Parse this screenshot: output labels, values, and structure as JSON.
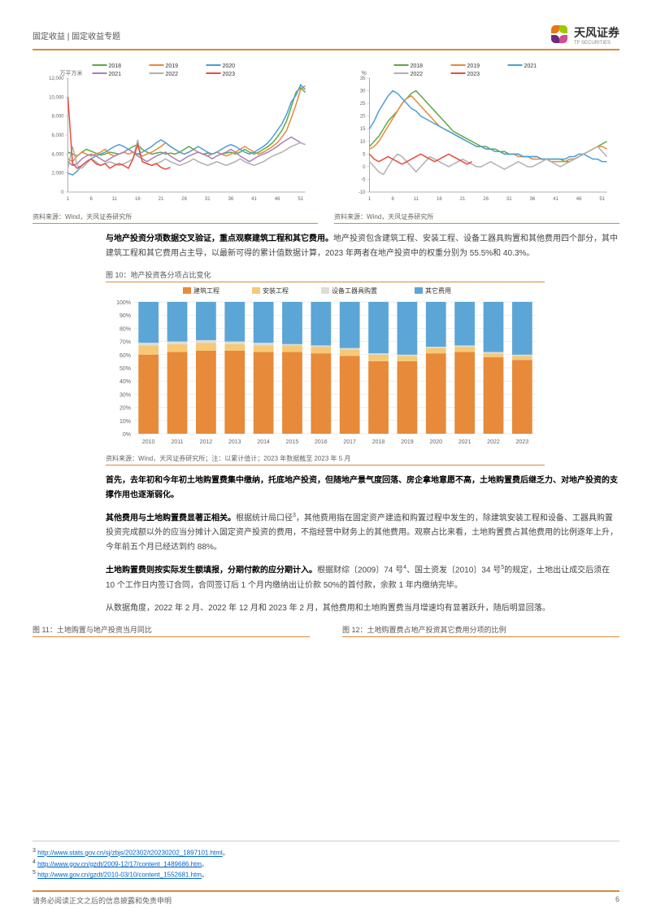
{
  "header": {
    "category": "固定收益 | 固定收益专题",
    "company": "天风证券",
    "company_en": "TF SECURITIES"
  },
  "chart_left": {
    "y_unit": "万平方米",
    "years": [
      "2018",
      "2019",
      "2020",
      "2021",
      "2022",
      "2023"
    ],
    "colors": [
      "#5fa843",
      "#e78a3a",
      "#4a9fd8",
      "#a47fb8",
      "#b0b0b0",
      "#e74c3c"
    ],
    "ylim": [
      0,
      12000
    ],
    "yticks": [
      0,
      2000,
      4000,
      6000,
      8000,
      10000,
      12000
    ],
    "xlim": [
      1,
      52
    ],
    "xticks": [
      1,
      6,
      11,
      16,
      21,
      26,
      31,
      36,
      41,
      46,
      51
    ],
    "source": "资料来源：Wind，天风证券研究所",
    "series_2018": [
      4200,
      4000,
      3800,
      4200,
      4500,
      4300,
      4100,
      3900,
      4000,
      4200,
      4100,
      4000,
      4200,
      4500,
      4800,
      5000,
      4500,
      4200,
      4000,
      4100,
      4200,
      4000,
      4100,
      4000,
      4200,
      4500,
      4800,
      4500,
      4200,
      4000,
      4100,
      4000,
      4200,
      4000,
      4100,
      4200,
      4000,
      4200,
      4500,
      4200,
      4000,
      4200,
      4500,
      4800,
      5200,
      5800,
      6500,
      7500,
      9000,
      10500,
      11000,
      10500
    ],
    "series_2019": [
      3500,
      3200,
      3800,
      4200,
      4000,
      3800,
      4000,
      4200,
      4500,
      4000,
      3800,
      4000,
      4200,
      4000,
      4200,
      4000,
      3800,
      4000,
      4200,
      4500,
      4800,
      5200,
      4800,
      4500,
      4200,
      4000,
      4200,
      4500,
      4200,
      4000,
      3800,
      4000,
      4200,
      4000,
      3800,
      4000,
      4200,
      4500,
      4800,
      4500,
      4200,
      4000,
      4200,
      4500,
      4800,
      5200,
      5800,
      6500,
      7800,
      9200,
      10800,
      11200
    ],
    "series_2020": [
      2000,
      1800,
      2200,
      2800,
      3200,
      3500,
      3800,
      4000,
      4200,
      4500,
      4800,
      5000,
      4800,
      4500,
      4200,
      4000,
      4200,
      4500,
      4800,
      5200,
      5500,
      5200,
      4800,
      4500,
      4200,
      4000,
      4200,
      4500,
      4800,
      4500,
      4200,
      4000,
      4200,
      4500,
      4800,
      5000,
      4800,
      4500,
      4200,
      4000,
      4200,
      4500,
      4800,
      5200,
      5800,
      6500,
      7200,
      8200,
      9500,
      10200,
      11300,
      10800
    ],
    "series_2021": [
      3200,
      2800,
      3000,
      3500,
      3800,
      4000,
      3800,
      3500,
      3200,
      3500,
      3800,
      4000,
      4200,
      4500,
      4200,
      3800,
      3500,
      3200,
      3500,
      3800,
      4000,
      4200,
      3800,
      3500,
      3200,
      3500,
      3800,
      4000,
      4200,
      4000,
      3800,
      3500,
      3800,
      4000,
      4200,
      4500,
      4200,
      3800,
      3500,
      3200,
      3500,
      3800,
      4000,
      4200,
      4500,
      4800,
      5200,
      5500,
      5800,
      5500,
      5200,
      5000
    ],
    "series_2022": [
      2500,
      4800,
      2800,
      2500,
      3000,
      3500,
      3200,
      2800,
      3000,
      3200,
      3000,
      2800,
      3000,
      3200,
      3500,
      5500,
      3200,
      3000,
      2800,
      3000,
      3200,
      3500,
      3200,
      3000,
      2800,
      3000,
      3200,
      3500,
      3200,
      3000,
      2800,
      3000,
      3200,
      3000,
      2800,
      3000,
      3200,
      3500,
      3200,
      3000,
      2800,
      3000,
      3200,
      3500,
      3800,
      4000,
      4200,
      4500,
      4800,
      5000,
      5200,
      5000
    ],
    "series_2023": [
      10000,
      3000,
      2500,
      2800,
      3200,
      3500,
      3000,
      2800,
      3000,
      2500,
      2800,
      3000,
      2800,
      2500,
      3500,
      5000,
      3200,
      3000,
      2800,
      3000,
      2600,
      2400,
      2600
    ],
    "line_width": 1.5
  },
  "chart_right": {
    "y_unit": "%",
    "years": [
      "2018",
      "2019",
      "2021",
      "2022",
      "2023"
    ],
    "colors": [
      "#5fa843",
      "#e78a3a",
      "#4a9fd8",
      "#b0b0b0",
      "#e74c3c"
    ],
    "ylim": [
      -10,
      35
    ],
    "yticks": [
      -10,
      -5,
      0,
      5,
      10,
      15,
      20,
      25,
      30,
      35
    ],
    "xlim": [
      1,
      52
    ],
    "xticks": [
      1,
      6,
      11,
      16,
      21,
      26,
      31,
      36,
      41,
      46,
      51
    ],
    "source": "资料来源：Wind，天风证券研究所",
    "series_2018": [
      8,
      10,
      12,
      15,
      18,
      20,
      22,
      25,
      27,
      29,
      30,
      28,
      26,
      24,
      22,
      20,
      18,
      16,
      14,
      13,
      12,
      11,
      10,
      9,
      8,
      8,
      7,
      7,
      6,
      6,
      5,
      5,
      5,
      4,
      4,
      4,
      4,
      3,
      3,
      3,
      3,
      3,
      2,
      2,
      3,
      4,
      5,
      6,
      7,
      8,
      9,
      10
    ],
    "series_2019": [
      7,
      8,
      10,
      13,
      16,
      19,
      22,
      25,
      27,
      28,
      26,
      24,
      22,
      20,
      18,
      16,
      15,
      14,
      13,
      12,
      11,
      10,
      9,
      8,
      8,
      7,
      7,
      6,
      6,
      5,
      5,
      5,
      4,
      4,
      4,
      3,
      3,
      3,
      3,
      2,
      2,
      2,
      2,
      3,
      3,
      4,
      5,
      6,
      7,
      8,
      8,
      7
    ],
    "series_2021": [
      15,
      18,
      22,
      25,
      28,
      30,
      29,
      27,
      25,
      23,
      22,
      20,
      19,
      18,
      17,
      16,
      15,
      14,
      13,
      12,
      11,
      10,
      9,
      8,
      8,
      7,
      7,
      6,
      6,
      5,
      5,
      5,
      5,
      4,
      4,
      4,
      4,
      3,
      3,
      3,
      3,
      3,
      3,
      4,
      4,
      5,
      5,
      4,
      3,
      3,
      2,
      2
    ],
    "series_2022": [
      2,
      0,
      -2,
      -3,
      0,
      3,
      5,
      4,
      2,
      0,
      -2,
      0,
      2,
      4,
      3,
      2,
      1,
      0,
      1,
      2,
      3,
      2,
      1,
      0,
      0,
      1,
      2,
      1,
      0,
      -1,
      0,
      1,
      2,
      1,
      0,
      0,
      1,
      2,
      3,
      2,
      1,
      0,
      1,
      2,
      3,
      4,
      5,
      6,
      7,
      8,
      6,
      4
    ],
    "series_2023": [
      5,
      3,
      2,
      3,
      4,
      3,
      2,
      1,
      2,
      3,
      4,
      5,
      4,
      3,
      2,
      3,
      4,
      5,
      4,
      3,
      2,
      1,
      2
    ],
    "line_width": 1.5
  },
  "para1": {
    "bold": "与地产投资分项数据交叉验证，重点观察建筑工程和其它费用。",
    "text": "地产投资包含建筑工程、安装工程、设备工器具购置和其他费用四个部分，其中建筑工程和其它费用占主导，以最新可得的累计值数据计算，2023 年两者在地产投资中的权重分别为 55.5%和 40.3%。"
  },
  "stacked": {
    "title": "图 10：地产投资各分项占比变化",
    "categories": [
      "建筑工程",
      "安装工程",
      "设备工器具购置",
      "其它费用"
    ],
    "colors": [
      "#e78a3a",
      "#f5c978",
      "#dcdcdc",
      "#5ba6d6"
    ],
    "years": [
      "2010",
      "2011",
      "2012",
      "2013",
      "2014",
      "2015",
      "2016",
      "2017",
      "2018",
      "2019",
      "2020",
      "2021",
      "2022",
      "2023"
    ],
    "data": [
      [
        60,
        7,
        2,
        31
      ],
      [
        62,
        6,
        2,
        30
      ],
      [
        63,
        6,
        2,
        29
      ],
      [
        63,
        5,
        2,
        30
      ],
      [
        62,
        5,
        2,
        31
      ],
      [
        62,
        5,
        1,
        32
      ],
      [
        61,
        5,
        1,
        33
      ],
      [
        59,
        5,
        1,
        35
      ],
      [
        55,
        5,
        1,
        39
      ],
      [
        55,
        4,
        1,
        40
      ],
      [
        61,
        4,
        1,
        34
      ],
      [
        62,
        4,
        1,
        33
      ],
      [
        58,
        3,
        1,
        38
      ],
      [
        56,
        3,
        1,
        40
      ]
    ],
    "yticks": [
      0,
      10,
      20,
      30,
      40,
      50,
      60,
      70,
      80,
      90,
      100
    ],
    "source": "资料来源：Wind，天风证券研究所；注：以累计值计；2023 年数据截至 2023 年 5 月"
  },
  "para2": {
    "bold": "首先，去年初和今年初土地购置费集中缴纳，托底地产投资，但随地产景气度回落、房企拿地意愿不高，土地购置费后继乏力、对地产投资的支撑作用也逐渐弱化。"
  },
  "para3": {
    "bold": "其他费用与土地购置费显著正相关。",
    "text": "根据统计局口径",
    "sup": "3",
    "text2": "，其他费用指在固定资产建造和购置过程中发生的，除建筑安装工程和设备、工器具购置投资完成额以外的应当分摊计入固定资产投资的费用，不指经营中财务上的其他费用。观察占比来看，土地购置费占其他费用的比例逐年上升，今年前五个月已经达到约 88%。"
  },
  "para4": {
    "bold": "土地购置费则按实际发生额填报，分期付款的应分期计入。",
    "text": "根据财综〔2009〕74 号",
    "sup": "4",
    "text2": "、国土资发〔2010〕34 号",
    "sup2": "5",
    "text3": "的规定，土地出让成交后须在 10 个工作日内签订合同，合同签订后 1 个月内缴纳出让价款 50%的首付款，余款 1 年内缴纳完毕。"
  },
  "para5": {
    "text": "从数据角度，2022 年 2 月、2022 年 12 月和 2023 年 2 月，其他费用和土地购置费当月增速均有显著跃升，随后明显回落。"
  },
  "fig11_title": "图 11：土地购置与地产投资当月同比",
  "fig12_title": "图 12：土地购置费占地产投资其它费用分项的比例",
  "footnotes": {
    "f3_num": "3",
    "f3_url": "http://www.stats.gov.cn/sj/zbjs/202302/t20230202_1897101.html",
    "f4_num": "4",
    "f4_url": "http://www.gov.cn/gzdt/2009-12/17/content_1489686.htm",
    "f5_num": "5",
    "f5_url": "http://www.gov.cn/gzdt/2010-03/10/content_1552681.htm",
    "suffix": "。"
  },
  "footer": {
    "disclaimer": "请务必阅读正文之后的信息披露和免责申明",
    "page": "6"
  }
}
